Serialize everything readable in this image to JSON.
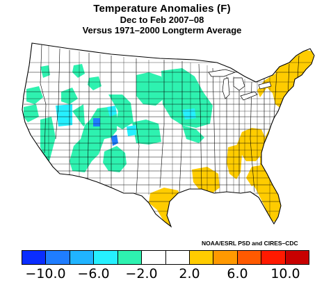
{
  "title": {
    "line1": "Temperature Anomalies (F)",
    "line2": "Dec to Feb 2007–08",
    "line3": "Versus 1971–2000 Longterm Average"
  },
  "credit": "NOAA/ESRL PSD and CIRES–CDC",
  "legend": {
    "colors": [
      "#0a2dff",
      "#1f7dff",
      "#20b4ff",
      "#26f0ff",
      "#2ef2b0",
      "#ffffff",
      "#ffffff",
      "#ffcc00",
      "#ff9900",
      "#ff5a00",
      "#ff1a00",
      "#c80000"
    ],
    "ticks": [
      "−10.0",
      "−6.0",
      "−2.0",
      "2.0",
      "6.0",
      "10.0"
    ]
  },
  "map": {
    "colors": {
      "land": "#ffffff",
      "border": "#000000",
      "cool": "#2ef2b0",
      "cooler": "#26f0ff",
      "cold": "#1f7dff",
      "warm": "#ffcc00"
    }
  }
}
